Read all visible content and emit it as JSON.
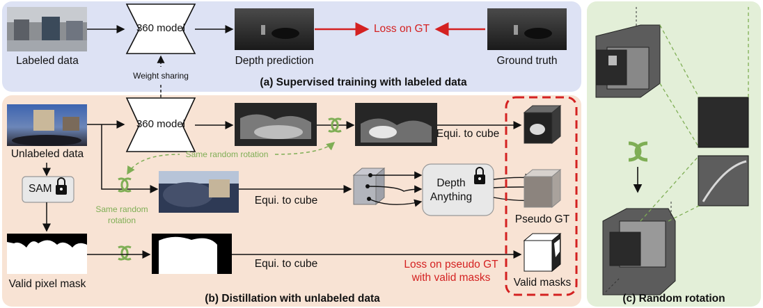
{
  "colors": {
    "panel_a": "#dde2f4",
    "panel_b": "#f8e3d4",
    "panel_c": "#e3efd8",
    "loss_red": "#d42121",
    "rotation_green": "#7fae55"
  },
  "panel_a": {
    "caption": "(a) Supervised training with labeled data",
    "labeled_data": "Labeled data",
    "model": "360 model",
    "depth_prediction": "Depth prediction",
    "loss": "Loss on GT",
    "ground_truth": "Ground truth",
    "weight_sharing": "Weight sharing"
  },
  "panel_b": {
    "caption": "(b) Distillation with unlabeled data",
    "unlabeled_data": "Unlabeled data",
    "model": "360 model",
    "sam": "SAM",
    "same_random_rotation_1": "Same random rotation",
    "same_random_rotation_2_line1": "Same random",
    "same_random_rotation_2_line2": "rotation",
    "equi_to_cube_1": "Equi. to cube",
    "equi_to_cube_2": "Equi. to cube",
    "equi_to_cube_3": "Equi. to cube",
    "depth_anything_line1": "Depth",
    "depth_anything_line2": "Anything",
    "pseudo_gt": "Pseudo GT",
    "valid_pixel_mask": "Valid pixel mask",
    "valid_masks": "Valid masks",
    "loss_line1": "Loss on pseudo GT",
    "loss_line2": "with valid masks"
  },
  "panel_c": {
    "caption": "(c) Random rotation"
  }
}
